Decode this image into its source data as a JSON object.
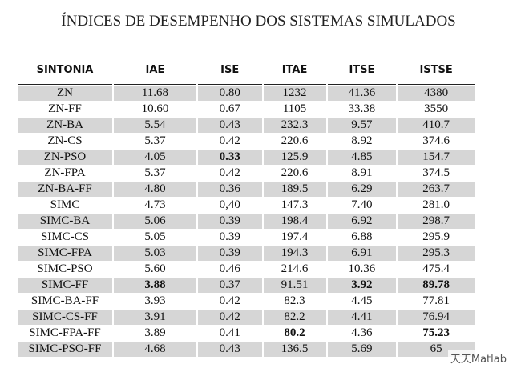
{
  "title": "ÍNDICES DE DESEMPENHO DOS SISTEMAS SIMULADOS",
  "table": {
    "header": [
      "SINTONIA",
      "IAE",
      "ISE",
      "ITAE",
      "ITSE",
      "ISTSE"
    ],
    "rows": [
      [
        "ZN",
        "11.68",
        "0.80",
        "1232",
        "41.36",
        "4380"
      ],
      [
        "ZN-FF",
        "10.60",
        "0.67",
        "1105",
        "33.38",
        "3550"
      ],
      [
        "ZN-BA",
        "5.54",
        "0.43",
        "232.3",
        "9.57",
        "410.7"
      ],
      [
        "ZN-CS",
        "5.37",
        "0.42",
        "220.6",
        "8.92",
        "374.6"
      ],
      [
        "ZN-PSO",
        "4.05",
        "0.33",
        "125.9",
        "4.85",
        "154.7"
      ],
      [
        "ZN-FPA",
        "5.37",
        "0.42",
        "220.6",
        "8.91",
        "374.5"
      ],
      [
        "ZN-BA-FF",
        "4.80",
        "0.36",
        "189.5",
        "6.29",
        "263.7"
      ],
      [
        "SIMC",
        "4.73",
        "0,40",
        "147.3",
        "7.40",
        "281.0"
      ],
      [
        "SIMC-BA",
        "5.06",
        "0.39",
        "198.4",
        "6.92",
        "298.7"
      ],
      [
        "SIMC-CS",
        "5.05",
        "0.39",
        "197.4",
        "6.88",
        "295.9"
      ],
      [
        "SIMC-FPA",
        "5.03",
        "0.39",
        "194.3",
        "6.91",
        "295.3"
      ],
      [
        "SIMC-PSO",
        "5.60",
        "0.46",
        "214.6",
        "10.36",
        "475.4"
      ],
      [
        "SIMC-FF",
        "3.88",
        "0.37",
        "91.51",
        "3.92",
        "89.78"
      ],
      [
        "SIMC-BA-FF",
        "3.93",
        "0.42",
        "82.3",
        "4.45",
        "77.81"
      ],
      [
        "SIMC-CS-FF",
        "3.91",
        "0.42",
        "82.2",
        "4.41",
        "76.94"
      ],
      [
        "SIMC-FPA-FF",
        "3.89",
        "0.41",
        "80.2",
        "4.36",
        "75.23"
      ],
      [
        "SIMC-PSO-FF",
        "4.68",
        "0.43",
        "136.5",
        "5.69",
        "65"
      ]
    ],
    "bold_cells": [
      [
        4,
        2
      ],
      [
        12,
        1
      ],
      [
        12,
        4
      ],
      [
        12,
        5
      ],
      [
        15,
        3
      ],
      [
        15,
        5
      ]
    ]
  },
  "watermark": "天天Matlab"
}
